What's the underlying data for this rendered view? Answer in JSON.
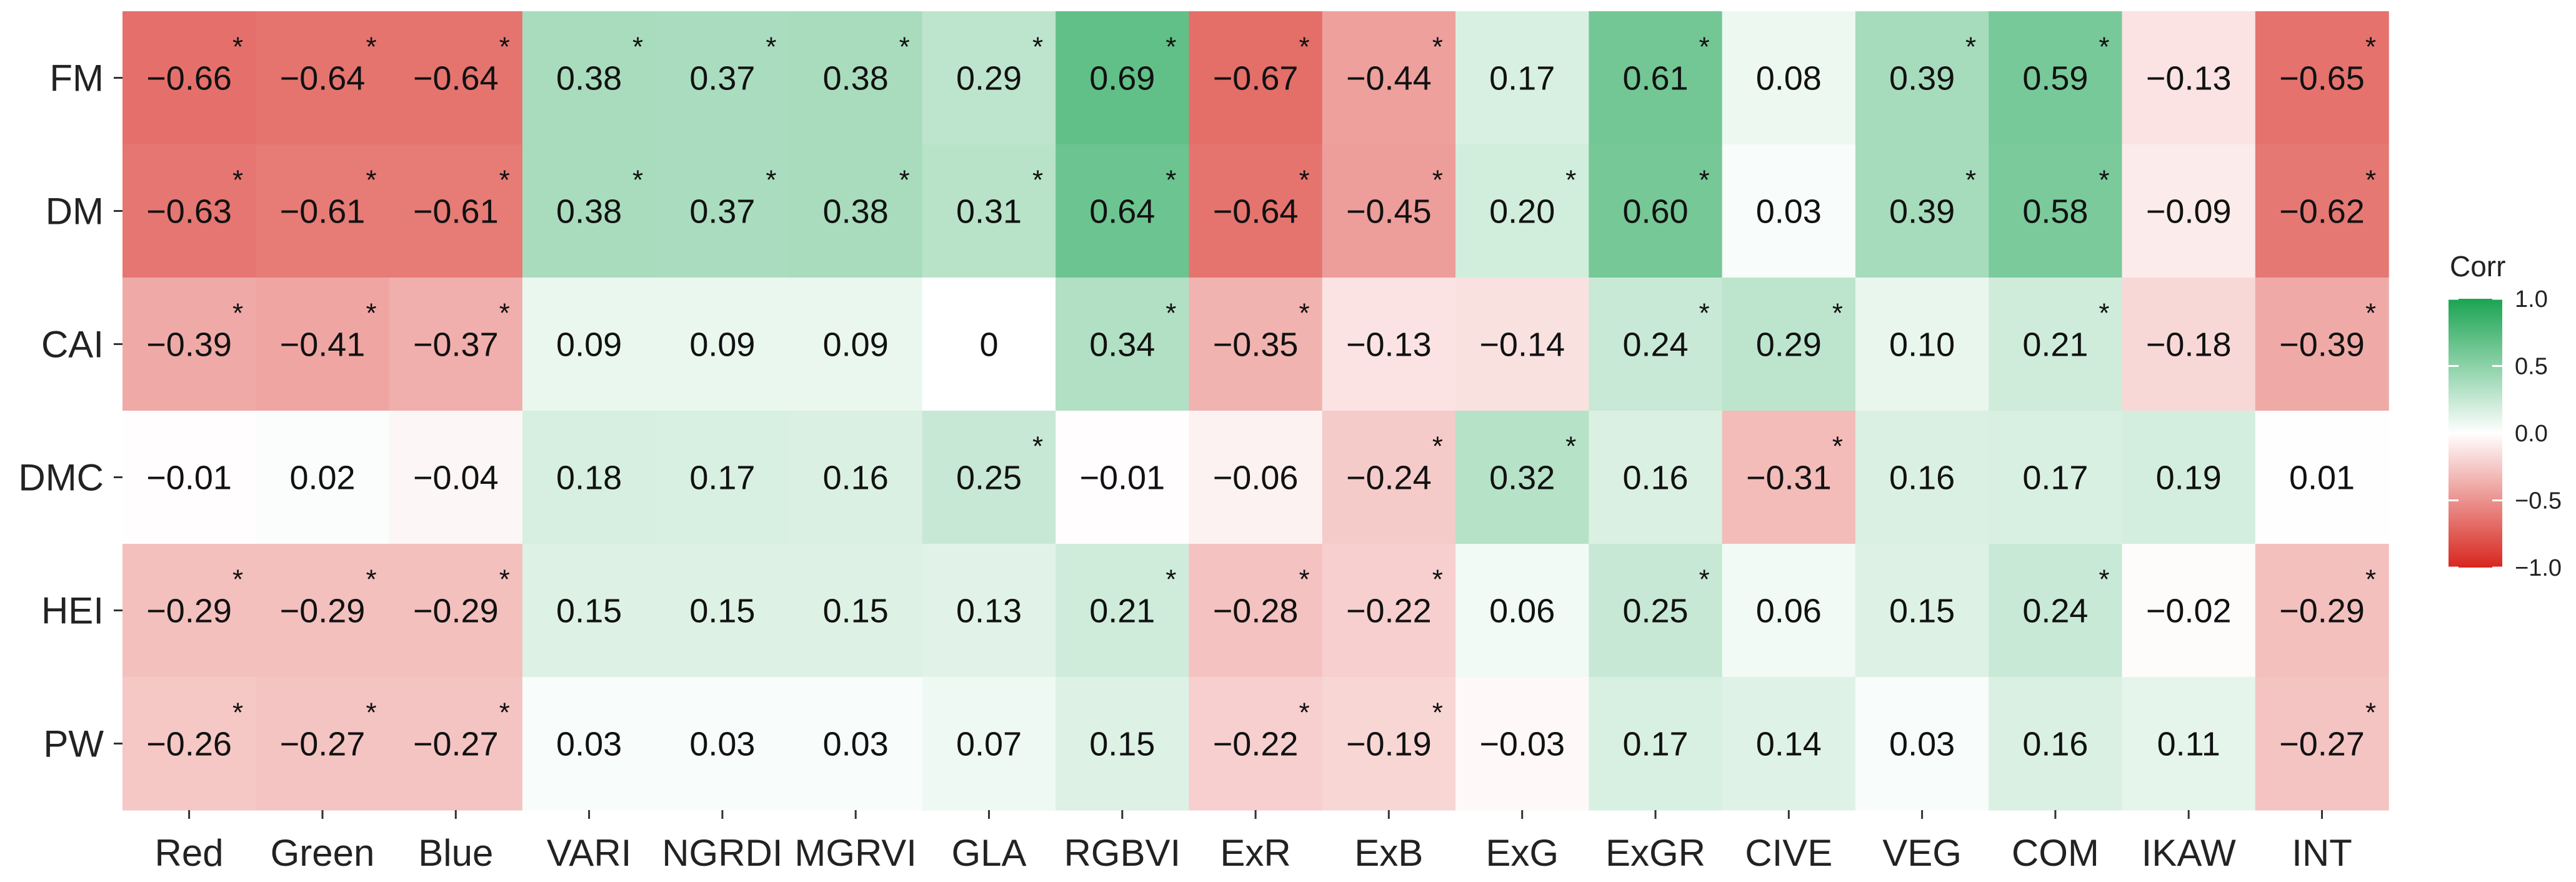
{
  "chart_data": {
    "type": "heatmap",
    "x_categories": [
      "Red",
      "Green",
      "Blue",
      "VARI",
      "NGRDI",
      "MGRVI",
      "GLA",
      "RGBVI",
      "ExR",
      "ExB",
      "ExG",
      "ExGR",
      "CIVE",
      "VEG",
      "COM",
      "IKAW",
      "INT"
    ],
    "y_categories": [
      "FM",
      "DM",
      "CAI",
      "DMC",
      "HEI",
      "PW"
    ],
    "values": [
      [
        -0.66,
        -0.64,
        -0.64,
        0.38,
        0.37,
        0.38,
        0.29,
        0.69,
        -0.67,
        -0.44,
        0.17,
        0.61,
        0.08,
        0.39,
        0.59,
        -0.13,
        -0.65
      ],
      [
        -0.63,
        -0.61,
        -0.61,
        0.38,
        0.37,
        0.38,
        0.31,
        0.64,
        -0.64,
        -0.45,
        0.2,
        0.6,
        0.03,
        0.39,
        0.58,
        -0.09,
        -0.62
      ],
      [
        -0.39,
        -0.41,
        -0.37,
        0.09,
        0.09,
        0.09,
        0,
        0.34,
        -0.35,
        -0.13,
        -0.14,
        0.24,
        0.29,
        0.1,
        0.21,
        -0.18,
        -0.39
      ],
      [
        -0.01,
        0.02,
        -0.04,
        0.18,
        0.17,
        0.16,
        0.25,
        -0.01,
        -0.06,
        -0.24,
        0.32,
        0.16,
        -0.31,
        0.16,
        0.17,
        0.19,
        0.01
      ],
      [
        -0.29,
        -0.29,
        -0.29,
        0.15,
        0.15,
        0.15,
        0.13,
        0.21,
        -0.28,
        -0.22,
        0.06,
        0.25,
        0.06,
        0.15,
        0.24,
        -0.02,
        -0.29
      ],
      [
        -0.26,
        -0.27,
        -0.27,
        0.03,
        0.03,
        0.03,
        0.07,
        0.15,
        -0.22,
        -0.19,
        -0.03,
        0.17,
        0.14,
        0.03,
        0.16,
        0.11,
        -0.27
      ]
    ],
    "value_labels": [
      [
        "−0.66",
        "−0.64",
        "−0.64",
        "0.38",
        "0.37",
        "0.38",
        "0.29",
        "0.69",
        "−0.67",
        "−0.44",
        "0.17",
        "0.61",
        "0.08",
        "0.39",
        "0.59",
        "−0.13",
        "−0.65"
      ],
      [
        "−0.63",
        "−0.61",
        "−0.61",
        "0.38",
        "0.37",
        "0.38",
        "0.31",
        "0.64",
        "−0.64",
        "−0.45",
        "0.20",
        "0.60",
        "0.03",
        "0.39",
        "0.58",
        "−0.09",
        "−0.62"
      ],
      [
        "−0.39",
        "−0.41",
        "−0.37",
        "0.09",
        "0.09",
        "0.09",
        "0",
        "0.34",
        "−0.35",
        "−0.13",
        "−0.14",
        "0.24",
        "0.29",
        "0.10",
        "0.21",
        "−0.18",
        "−0.39"
      ],
      [
        "−0.01",
        "0.02",
        "−0.04",
        "0.18",
        "0.17",
        "0.16",
        "0.25",
        "−0.01",
        "−0.06",
        "−0.24",
        "0.32",
        "0.16",
        "−0.31",
        "0.16",
        "0.17",
        "0.19",
        "0.01"
      ],
      [
        "−0.29",
        "−0.29",
        "−0.29",
        "0.15",
        "0.15",
        "0.15",
        "0.13",
        "0.21",
        "−0.28",
        "−0.22",
        "0.06",
        "0.25",
        "0.06",
        "0.15",
        "0.24",
        "−0.02",
        "−0.29"
      ],
      [
        "−0.26",
        "−0.27",
        "−0.27",
        "0.03",
        "0.03",
        "0.03",
        "0.07",
        "0.15",
        "−0.22",
        "−0.19",
        "−0.03",
        "0.17",
        "0.14",
        "0.03",
        "0.16",
        "0.11",
        "−0.27"
      ]
    ],
    "significant": [
      [
        true,
        true,
        true,
        true,
        true,
        true,
        true,
        true,
        true,
        true,
        false,
        true,
        false,
        true,
        true,
        false,
        true
      ],
      [
        true,
        true,
        true,
        true,
        true,
        true,
        true,
        true,
        true,
        true,
        true,
        true,
        false,
        true,
        true,
        false,
        true
      ],
      [
        true,
        true,
        true,
        false,
        false,
        false,
        false,
        true,
        true,
        false,
        false,
        true,
        true,
        false,
        true,
        false,
        true
      ],
      [
        false,
        false,
        false,
        false,
        false,
        false,
        true,
        false,
        false,
        true,
        true,
        false,
        true,
        false,
        false,
        false,
        false
      ],
      [
        true,
        true,
        true,
        false,
        false,
        false,
        false,
        true,
        true,
        true,
        false,
        true,
        false,
        false,
        true,
        false,
        true
      ],
      [
        true,
        true,
        true,
        false,
        false,
        false,
        false,
        false,
        true,
        true,
        false,
        false,
        false,
        false,
        false,
        false,
        true
      ]
    ],
    "significance_marker": "*",
    "legend": {
      "title": "Corr",
      "ticks": [
        1.0,
        0.5,
        0.0,
        -0.5,
        -1.0
      ],
      "tick_labels": [
        "1.0",
        "0.5",
        "0.0",
        "−0.5",
        "−1.0"
      ],
      "placement": "right"
    },
    "scale_range": [
      -1.0,
      1.0
    ],
    "colors": {
      "low": "#d7261e",
      "mid": "#ffffff",
      "high": "#1aa452",
      "text": "#111111",
      "tick": "#333333"
    },
    "title": "",
    "xlabel": "",
    "ylabel": "",
    "grid": false
  }
}
